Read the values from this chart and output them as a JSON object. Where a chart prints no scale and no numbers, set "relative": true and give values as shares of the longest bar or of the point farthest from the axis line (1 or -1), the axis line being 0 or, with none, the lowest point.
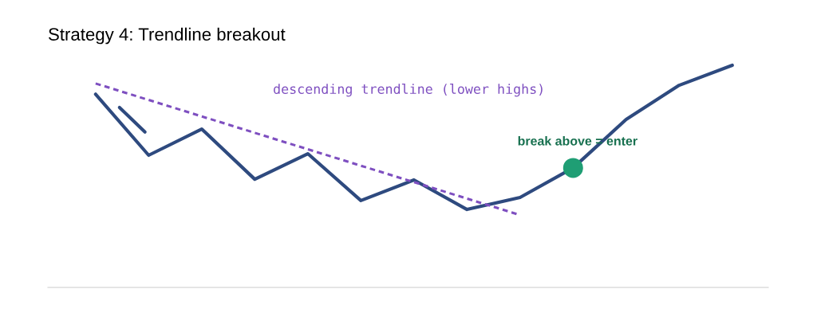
{
  "chart_data": {
    "type": "line",
    "title": "Strategy 4: Trendline breakout",
    "relative": true,
    "categories": [
      null,
      null,
      null,
      null,
      null,
      null,
      null,
      null,
      null,
      null,
      null,
      null,
      null
    ],
    "series": [
      {
        "color": "#2e4a7f",
        "values": [
          0.87,
          0.595,
          0.713,
          0.487,
          0.602,
          0.391,
          0.484,
          0.351,
          0.405,
          0.538,
          0.756,
          0.91,
          1.0
        ]
      },
      {
        "color": "#7e4fc0",
        "line_style": "dashed",
        "values": [
          0.918,
          0.844,
          0.77,
          0.696,
          0.622,
          0.548,
          0.474,
          0.4,
          0.326,
          null,
          null,
          null,
          null
        ]
      },
      {
        "color": "#1f9e74",
        "marker": "circle",
        "values": [
          null,
          null,
          null,
          null,
          null,
          null,
          null,
          null,
          null,
          0.538,
          null,
          null,
          null
        ]
      }
    ],
    "annotations": [
      "descending trendline (lower highs)",
      "break above = enter"
    ]
  }
}
